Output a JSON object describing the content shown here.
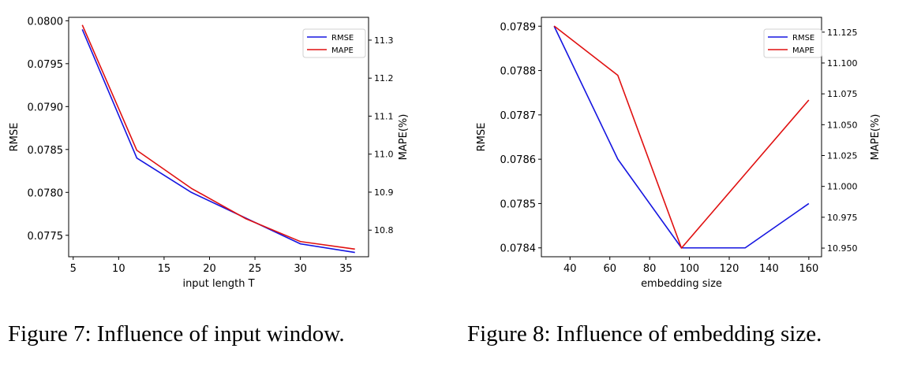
{
  "chart_data": [
    {
      "type": "line",
      "xlabel": "input length T",
      "ylabel": "RMSE",
      "y2label": "MAPE(%)",
      "x": [
        6,
        12,
        18,
        24,
        30,
        36
      ],
      "series": [
        {
          "name": "RMSE",
          "axis": "left",
          "color": "#1515e0",
          "values": [
            0.0799,
            0.0784,
            0.078,
            0.0777,
            0.0774,
            0.0773
          ]
        },
        {
          "name": "MAPE",
          "axis": "right",
          "color": "#e01010",
          "values": [
            11.34,
            11.01,
            10.91,
            10.83,
            10.77,
            10.75
          ]
        }
      ],
      "xlim": [
        4.5,
        37.5
      ],
      "ylim": [
        0.07725,
        0.08004
      ],
      "y2lim": [
        10.73,
        11.36
      ],
      "xticks": [
        "5",
        "10",
        "15",
        "20",
        "25",
        "30",
        "35"
      ],
      "yticks": [
        "0.0775",
        "0.0780",
        "0.0785",
        "0.0790",
        "0.0795",
        "0.0800"
      ],
      "y2ticks": [
        "10.8",
        "10.9",
        "11.0",
        "11.1",
        "11.2",
        "11.3"
      ],
      "legend": "top-right",
      "caption": "Figure 7: Influence of input window."
    },
    {
      "type": "line",
      "xlabel": "embedding size",
      "ylabel": "RMSE",
      "y2label": "MAPE(%)",
      "x": [
        32,
        64,
        96,
        128,
        160
      ],
      "series": [
        {
          "name": "RMSE",
          "axis": "left",
          "color": "#1515e0",
          "values": [
            0.0789,
            0.0786,
            0.0784,
            0.0784,
            0.0785
          ]
        },
        {
          "name": "MAPE",
          "axis": "right",
          "color": "#e01010",
          "values": [
            11.13,
            11.09,
            10.95,
            11.01,
            11.07
          ]
        }
      ],
      "xlim": [
        25.6,
        166.4
      ],
      "ylim": [
        0.07838,
        0.07892
      ],
      "y2lim": [
        10.943,
        11.137
      ],
      "xticks": [
        "40",
        "60",
        "80",
        "100",
        "120",
        "140",
        "160"
      ],
      "yticks": [
        "0.0784",
        "0.0785",
        "0.0786",
        "0.0787",
        "0.0788",
        "0.0789"
      ],
      "y2ticks": [
        "10.950",
        "10.975",
        "11.000",
        "11.025",
        "11.050",
        "11.075",
        "11.100",
        "11.125"
      ],
      "legend": "top-right",
      "caption": "Figure 8: Influence of embedding size."
    }
  ]
}
